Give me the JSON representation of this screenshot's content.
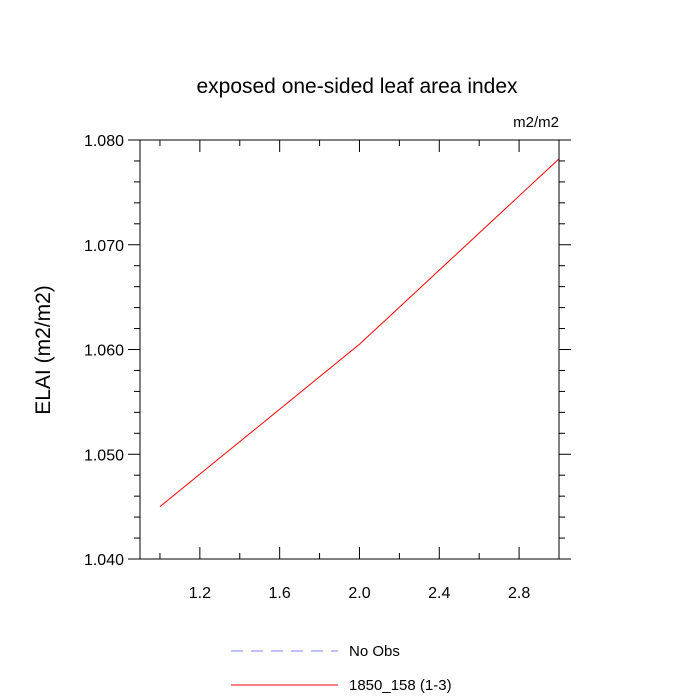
{
  "chart_data": {
    "type": "line",
    "title": "exposed one-sided leaf area index",
    "units_label": "m2/m2",
    "ylabel": "ELAI  (m2/m2)",
    "xlabel": "",
    "xlim": [
      0.9,
      3.0
    ],
    "ylim": [
      1.04,
      1.08
    ],
    "xticks": [
      1.2,
      1.6,
      2.0,
      2.4,
      2.8
    ],
    "xtick_labels": [
      "1.2",
      "1.6",
      "2.0",
      "2.4",
      "2.8"
    ],
    "yticks": [
      1.04,
      1.05,
      1.06,
      1.07,
      1.08
    ],
    "ytick_labels": [
      "1.040",
      "1.050",
      "1.060",
      "1.070",
      "1.080"
    ],
    "grid": false,
    "legend_placement": "bottom",
    "series": [
      {
        "name": "No Obs",
        "x": [],
        "y": [],
        "color": "#8080ff",
        "dash": "dashed"
      },
      {
        "name": "1850_158 (1-3)",
        "x": [
          1.0,
          2.0,
          3.0
        ],
        "y": [
          1.045,
          1.0605,
          1.0782
        ],
        "color": "#ff0000",
        "dash": "solid"
      }
    ]
  }
}
